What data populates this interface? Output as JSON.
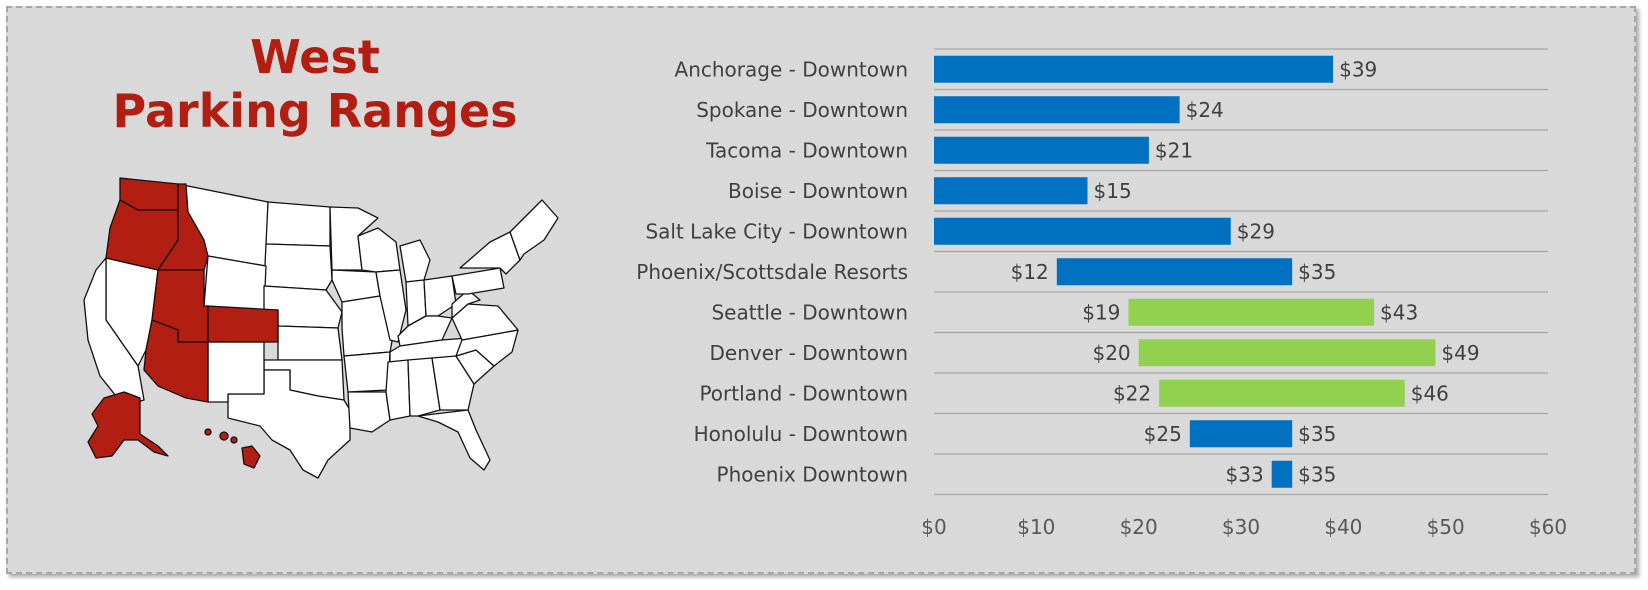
{
  "title": {
    "line1": "West",
    "line2": "Parking Ranges"
  },
  "map": {
    "highlight_color": "#b21f12",
    "base_color": "#ffffff",
    "stroke_color": "#111111"
  },
  "colors": {
    "blue": "#0070c0",
    "green": "#92d050",
    "grid": "#a6a6a6",
    "background": "#d9d9d9"
  },
  "chart_data": {
    "type": "bar",
    "orientation": "horizontal",
    "stacked_floating": true,
    "categories": [
      "Anchorage - Downtown",
      "Spokane - Downtown",
      "Tacoma - Downtown",
      "Boise - Downtown",
      "Salt Lake City - Downtown",
      "Phoenix/Scottsdale Resorts",
      "Seattle - Downtown",
      "Denver - Downtown",
      "Portland - Downtown",
      "Honolulu - Downtown",
      "Phoenix Downtown"
    ],
    "min_values": [
      0,
      0,
      0,
      0,
      0,
      12,
      19,
      20,
      22,
      25,
      33
    ],
    "max_values": [
      39,
      24,
      21,
      15,
      29,
      35,
      43,
      49,
      46,
      35,
      35
    ],
    "min_labels": [
      "",
      "",
      "",
      "",
      "",
      "$12",
      "$19",
      "$20",
      "$22",
      "$25",
      "$33"
    ],
    "max_labels": [
      "$39",
      "$24",
      "$21",
      "$15",
      "$29",
      "$35",
      "$43",
      "$49",
      "$46",
      "$35",
      "$35"
    ],
    "bar_colors": [
      "#0070c0",
      "#0070c0",
      "#0070c0",
      "#0070c0",
      "#0070c0",
      "#0070c0",
      "#92d050",
      "#92d050",
      "#92d050",
      "#0070c0",
      "#0070c0"
    ],
    "xlim": [
      0,
      60
    ],
    "xticks": [
      0,
      10,
      20,
      30,
      40,
      50,
      60
    ],
    "xtick_labels": [
      "$0",
      "$10",
      "$20",
      "$30",
      "$40",
      "$50",
      "$60"
    ],
    "gridlines": "horizontal row separators",
    "legend": "none"
  }
}
